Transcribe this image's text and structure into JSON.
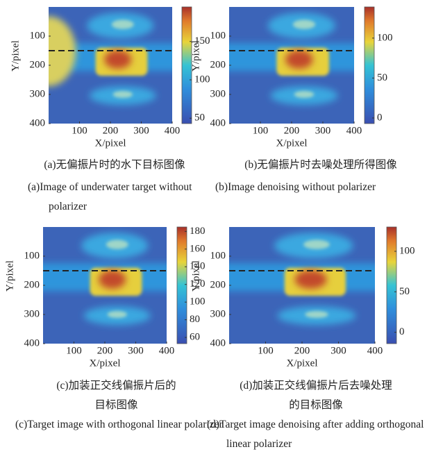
{
  "panels": [
    {
      "xlabel": "X/pixel",
      "ylabel": "Y/pixel",
      "xlim": [
        0,
        400
      ],
      "ylim": [
        0,
        400
      ],
      "xticks": [
        100,
        200,
        300,
        400
      ],
      "yticks": [
        100,
        200,
        300,
        400
      ],
      "colorbar": {
        "lim": [
          43,
          195
        ],
        "ticks": [
          50,
          100,
          150
        ]
      },
      "caption_zh": "(a)无偏振片时的水下目标图像",
      "caption_en": "(a)Image of underwater target without polarizer"
    },
    {
      "xlabel": "X/pixel",
      "ylabel": "Y/pixel",
      "xlim": [
        0,
        400
      ],
      "ylim": [
        0,
        400
      ],
      "xticks": [
        100,
        200,
        300,
        400
      ],
      "yticks": [
        100,
        200,
        300,
        400
      ],
      "colorbar": {
        "lim": [
          -7,
          139
        ],
        "ticks": [
          0,
          50,
          100
        ]
      },
      "caption_zh": "(b)无偏振片时去噪处理所得图像",
      "caption_en": "(b)Image denoising without polarizer"
    },
    {
      "xlabel": "X/pixel",
      "ylabel": "Y/pixel",
      "xlim": [
        0,
        400
      ],
      "ylim": [
        0,
        400
      ],
      "xticks": [
        100,
        200,
        300,
        400
      ],
      "yticks": [
        100,
        200,
        300,
        400
      ],
      "colorbar": {
        "lim": [
          53,
          185
        ],
        "ticks": [
          60,
          80,
          100,
          120,
          140,
          160,
          180
        ]
      },
      "caption_zh": "(c)加装正交线偏振片后的目标图像",
      "caption_en": "(c)Target image with orthogonal linear polarizer"
    },
    {
      "xlabel": "X/pixel",
      "ylabel": "Y/pixel",
      "xlim": [
        0,
        400
      ],
      "ylim": [
        0,
        400
      ],
      "xticks": [
        100,
        200,
        300,
        400
      ],
      "yticks": [
        100,
        200,
        300,
        400
      ],
      "colorbar": {
        "lim": [
          -14,
          130
        ],
        "ticks": [
          0,
          50,
          100
        ]
      },
      "caption_zh": "(d)加装正交线偏振片后去噪处理的目标图像",
      "caption_en": "(d)Target image denoising after adding orthogonal linear polarizer"
    }
  ]
}
